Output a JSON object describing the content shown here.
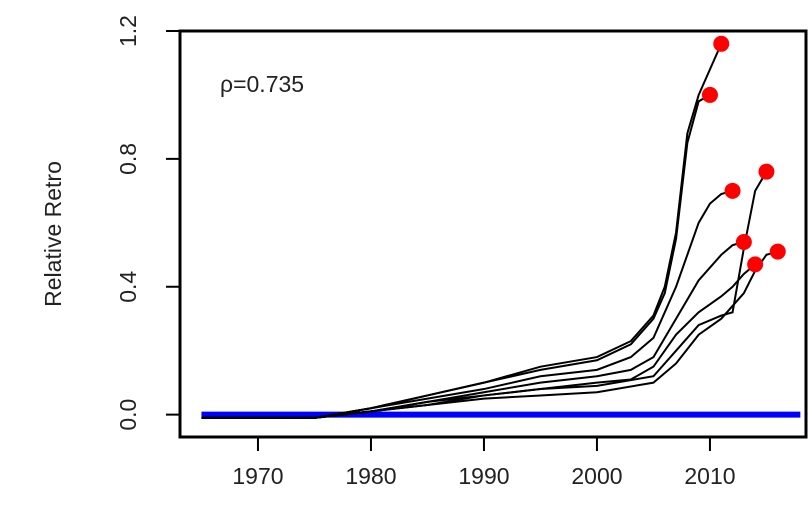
{
  "chart_data": {
    "type": "line",
    "y_label": "Relative Retro",
    "annotation": "ρ=0.735",
    "xlim": [
      1963.1,
      2018.5
    ],
    "ylim": [
      -0.07,
      1.2
    ],
    "xticks": [
      1970,
      1980,
      1990,
      2000,
      2010
    ],
    "yticks": [
      {
        "value": 0,
        "label": "0.0"
      },
      0.4,
      0.8,
      1.2
    ],
    "endpoint_color": "#ff0000",
    "reference_line": {
      "color": "#0000ff",
      "x": [
        1965,
        2018
      ],
      "values": [
        0,
        0
      ]
    },
    "series": [
      {
        "color": "#000000",
        "x": [
          1965,
          1970,
          1975,
          1980,
          1985,
          1990,
          1995,
          2000,
          2003,
          2005,
          2006,
          2007,
          2008,
          2009,
          2010
        ],
        "values": [
          -0.01,
          -0.01,
          -0.01,
          0.02,
          0.06,
          0.1,
          0.14,
          0.17,
          0.22,
          0.3,
          0.38,
          0.55,
          0.85,
          0.98,
          1.0
        ]
      },
      {
        "color": "#000000",
        "x": [
          1965,
          1970,
          1975,
          1980,
          1985,
          1990,
          1995,
          2000,
          2003,
          2005,
          2006,
          2007,
          2008,
          2009,
          2010,
          2011
        ],
        "values": [
          -0.01,
          -0.01,
          -0.01,
          0.02,
          0.06,
          0.1,
          0.15,
          0.18,
          0.23,
          0.31,
          0.4,
          0.57,
          0.88,
          1.0,
          1.08,
          1.16
        ]
      },
      {
        "color": "#000000",
        "x": [
          1965,
          1970,
          1975,
          1980,
          1985,
          1990,
          1995,
          2000,
          2003,
          2005,
          2007,
          2009,
          2010,
          2011,
          2012
        ],
        "values": [
          -0.01,
          -0.01,
          -0.01,
          0.02,
          0.05,
          0.08,
          0.12,
          0.14,
          0.18,
          0.24,
          0.4,
          0.6,
          0.66,
          0.69,
          0.7
        ]
      },
      {
        "color": "#000000",
        "x": [
          1965,
          1970,
          1975,
          1980,
          1985,
          1990,
          1995,
          2000,
          2003,
          2005,
          2007,
          2009,
          2011,
          2012,
          2013
        ],
        "values": [
          -0.01,
          -0.01,
          -0.01,
          0.01,
          0.04,
          0.07,
          0.1,
          0.12,
          0.14,
          0.18,
          0.3,
          0.42,
          0.5,
          0.53,
          0.54
        ]
      },
      {
        "color": "#000000",
        "x": [
          1965,
          1970,
          1975,
          1980,
          1985,
          1990,
          1995,
          2000,
          2003,
          2005,
          2007,
          2009,
          2011,
          2012,
          2013,
          2014
        ],
        "values": [
          -0.01,
          -0.01,
          -0.01,
          0.01,
          0.04,
          0.06,
          0.08,
          0.1,
          0.11,
          0.15,
          0.25,
          0.32,
          0.37,
          0.4,
          0.44,
          0.47
        ]
      },
      {
        "color": "#000000",
        "x": [
          1965,
          1970,
          1975,
          1980,
          1985,
          1990,
          1995,
          2000,
          2005,
          2007,
          2009,
          2011,
          2012,
          2013,
          2014,
          2015
        ],
        "values": [
          -0.01,
          -0.01,
          -0.01,
          0.01,
          0.03,
          0.06,
          0.08,
          0.09,
          0.12,
          0.2,
          0.28,
          0.31,
          0.32,
          0.52,
          0.7,
          0.76
        ]
      },
      {
        "color": "#000000",
        "x": [
          1965,
          1970,
          1975,
          1980,
          1985,
          1990,
          1995,
          2000,
          2005,
          2007,
          2009,
          2011,
          2013,
          2014,
          2015,
          2016
        ],
        "values": [
          -0.01,
          -0.01,
          -0.01,
          0.01,
          0.03,
          0.05,
          0.06,
          0.07,
          0.1,
          0.16,
          0.25,
          0.3,
          0.38,
          0.45,
          0.5,
          0.51
        ]
      }
    ]
  }
}
